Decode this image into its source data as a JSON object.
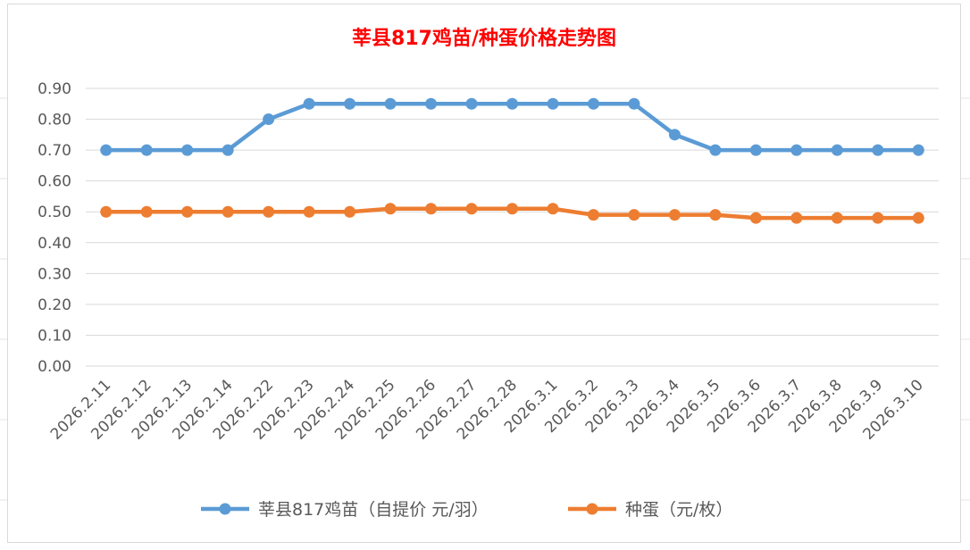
{
  "chart_data": {
    "type": "line",
    "title": "莘县817鸡苗/种蛋价格走势图",
    "xlabel": "",
    "ylabel": "",
    "ylim": [
      0,
      0.9
    ],
    "yticks": [
      "0.00",
      "0.10",
      "0.20",
      "0.30",
      "0.40",
      "0.50",
      "0.60",
      "0.70",
      "0.80",
      "0.90"
    ],
    "grid": true,
    "legend_position": "bottom",
    "categories": [
      "2026.2.11",
      "2026.2.12",
      "2026.2.13",
      "2026.2.14",
      "2026.2.22",
      "2026.2.23",
      "2026.2.24",
      "2026.2.25",
      "2026.2.26",
      "2026.2.27",
      "2026.2.28",
      "2026.3.1",
      "2026.3.2",
      "2026.3.3",
      "2026.3.4",
      "2026.3.5",
      "2026.3.6",
      "2026.3.7",
      "2026.3.8",
      "2026.3.9",
      "2026.3.10"
    ],
    "series": [
      {
        "name": "莘县817鸡苗（自提价 元/羽）",
        "color": "#5b9bd5",
        "values": [
          0.7,
          0.7,
          0.7,
          0.7,
          0.8,
          0.85,
          0.85,
          0.85,
          0.85,
          0.85,
          0.85,
          0.85,
          0.85,
          0.85,
          0.75,
          0.7,
          0.7,
          0.7,
          0.7,
          0.7,
          0.7
        ]
      },
      {
        "name": "种蛋（元/枚）",
        "color": "#ed7d31",
        "values": [
          0.5,
          0.5,
          0.5,
          0.5,
          0.5,
          0.5,
          0.5,
          0.51,
          0.51,
          0.51,
          0.51,
          0.51,
          0.49,
          0.49,
          0.49,
          0.49,
          0.48,
          0.48,
          0.48,
          0.48,
          0.48
        ]
      }
    ],
    "title_color": "#ff0000"
  }
}
